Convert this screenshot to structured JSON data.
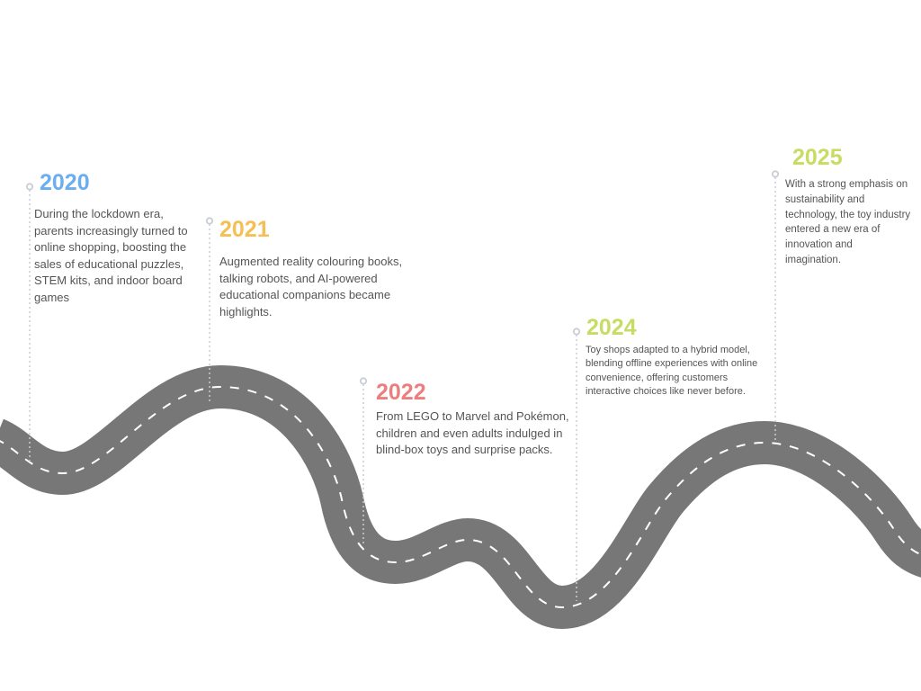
{
  "colors": {
    "road": "#777777",
    "dash": "#ffffff",
    "connector": "#c9cdd6",
    "year_2020": "#6aaef0",
    "year_2021": "#f6bf54",
    "year_2022": "#ee7e7e",
    "year_2024": "#c6dc62",
    "year_2025": "#c6dc62",
    "text": "#555555"
  },
  "milestones": [
    {
      "year": "2020",
      "text": "During the lockdown era, parents increasingly turned to online shopping, boosting the sales of educational puzzles, STEM kits, and indoor board games"
    },
    {
      "year": "2021",
      "text": "Augmented reality colouring books, talking robots, and AI-powered educational companions became highlights."
    },
    {
      "year": "2022",
      "text": "From LEGO to Marvel and Pokémon, children and even adults indulged in blind-box toys and surprise packs."
    },
    {
      "year": "2024",
      "text": "Toy shops adapted to a hybrid model, blending offline experiences with online convenience, offering customers interactive choices like never before."
    },
    {
      "year": "2025",
      "text": "With a strong emphasis on sustainability and technology, the toy industry entered a new era of innovation and imagination."
    }
  ]
}
